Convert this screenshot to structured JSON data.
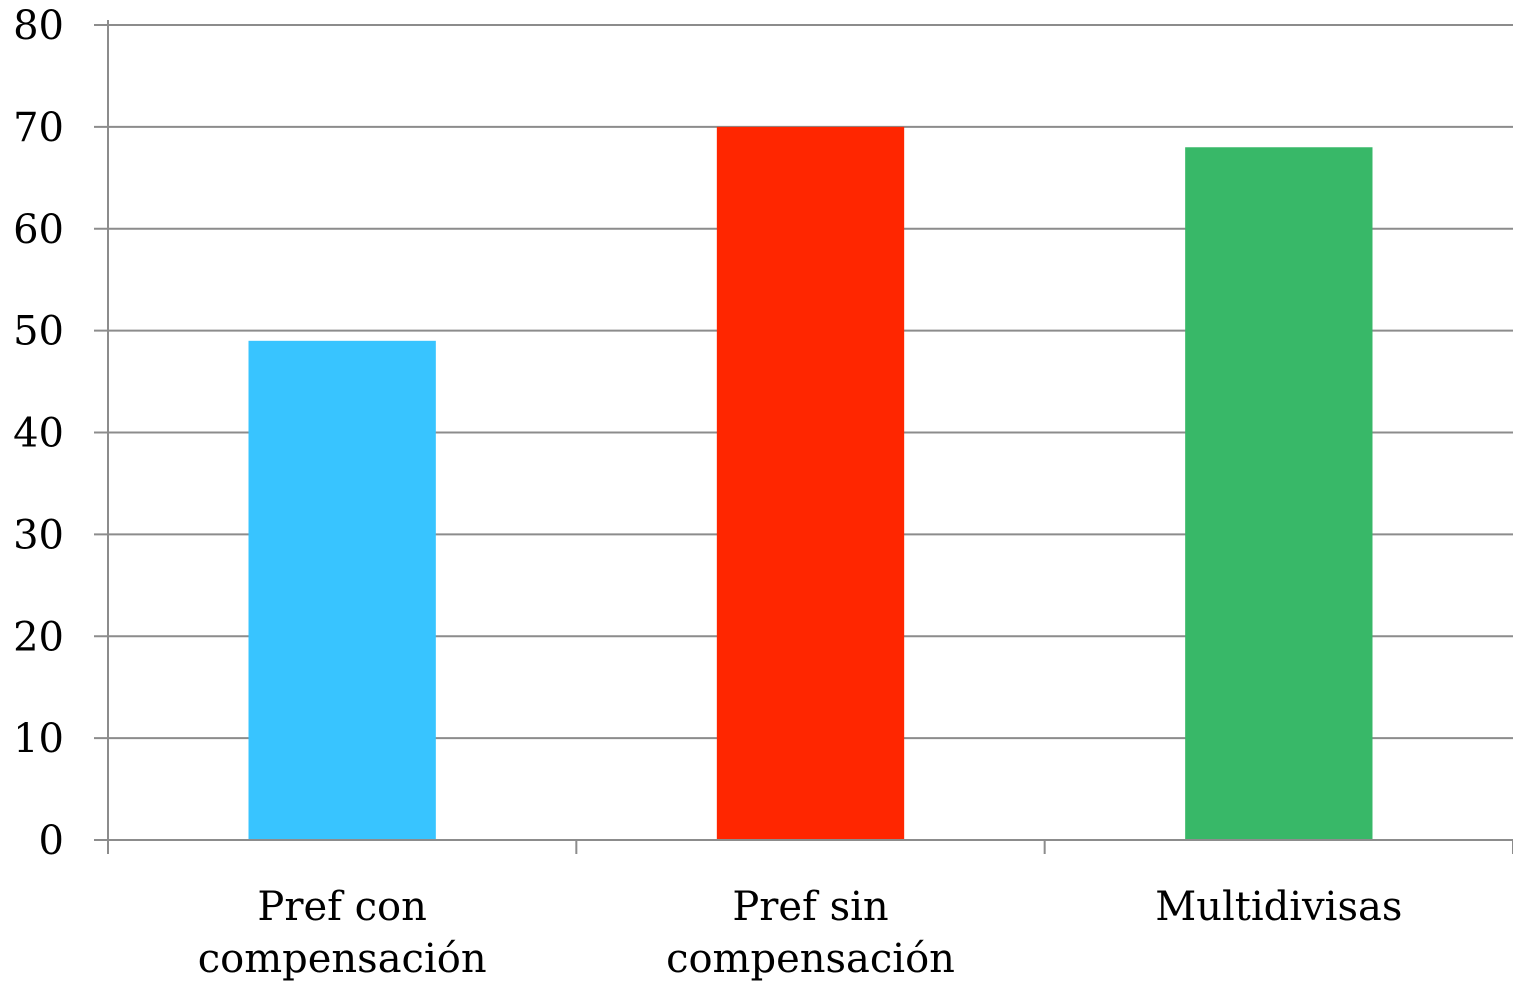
{
  "chart_data": {
    "type": "bar",
    "title": "",
    "xlabel": "",
    "ylabel": "",
    "ylim": [
      0,
      80
    ],
    "y_ticks": [
      0,
      10,
      20,
      30,
      40,
      50,
      60,
      70,
      80
    ],
    "grid": true,
    "legend": "none",
    "categories": [
      [
        "Pref con",
        "compensación"
      ],
      [
        "Pref sin",
        "compensación"
      ],
      [
        "Multidivisas"
      ]
    ],
    "values": [
      49,
      70,
      68
    ],
    "colors": [
      "#38c4ff",
      "#ff2600",
      "#38b868"
    ]
  }
}
